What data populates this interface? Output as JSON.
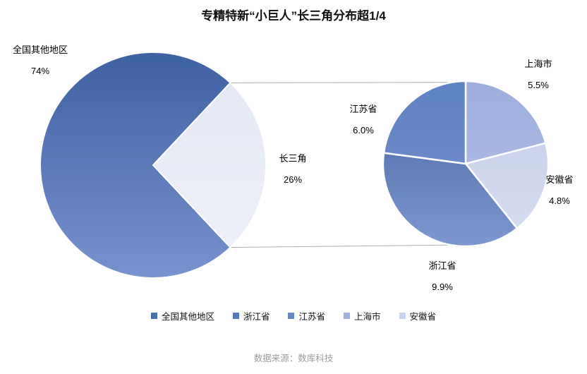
{
  "chart_data": {
    "type": "pie",
    "variant": "pie-of-pie",
    "title": "专精特新“小巨人”长三角分布超1/4",
    "unit": "%",
    "main_pie": {
      "slices": [
        {
          "key": "other-regions",
          "label": "全国其他地区",
          "value": 74,
          "value_label": "74%",
          "color_top": "#3E61A2",
          "color_bottom": "#7892CE"
        },
        {
          "key": "changsanjiao",
          "label": "长三角",
          "value": 26,
          "value_label": "26%",
          "color_top": "#E3E7F3",
          "color_bottom": "#EEF1F8"
        }
      ]
    },
    "secondary_pie": {
      "slices": [
        {
          "key": "shanghai",
          "label": "上海市",
          "value": 5.5,
          "value_label": "5.5%",
          "color_top": "#9DAEDD",
          "color_bottom": "#B6C2E7"
        },
        {
          "key": "anhui",
          "label": "安徽省",
          "value": 4.8,
          "value_label": "4.8%",
          "color_top": "#C3CDEA",
          "color_bottom": "#D8DEF2"
        },
        {
          "key": "zhejiang",
          "label": "浙江省",
          "value": 9.9,
          "value_label": "9.9%",
          "color_top": "#45669F",
          "color_bottom": "#7E97D1"
        },
        {
          "key": "jiangsu",
          "label": "江苏省",
          "value": 6.0,
          "value_label": "6.0%",
          "color_top": "#5E82C4",
          "color_bottom": "#7890CD"
        }
      ]
    },
    "legend": [
      {
        "label": "全国其他地区",
        "color": "#4A6FAE"
      },
      {
        "label": "浙江省",
        "color": "#5679B7"
      },
      {
        "label": "江苏省",
        "color": "#6688C8"
      },
      {
        "label": "上海市",
        "color": "#9FB0DE"
      },
      {
        "label": "安徽省",
        "color": "#CBD4EE"
      }
    ],
    "connector_color": "#ADADAD",
    "source": "数据来源：数库科技"
  }
}
